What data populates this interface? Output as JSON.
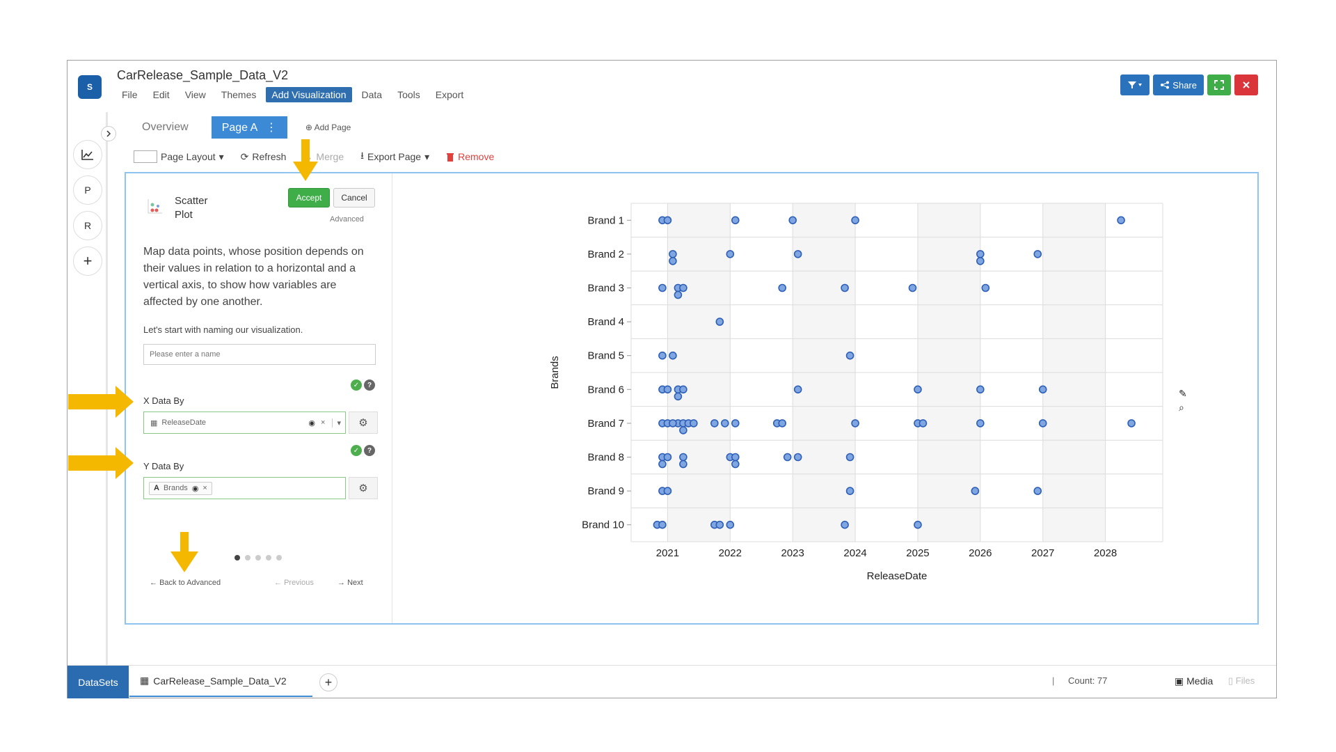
{
  "app": {
    "title": "CarRelease_Sample_Data_V2",
    "logo_text": "S",
    "menu": [
      "File",
      "Edit",
      "View",
      "Themes",
      "Add Visualization",
      "Data",
      "Tools",
      "Export"
    ],
    "active_menu": "Add Visualization",
    "share_label": "Share"
  },
  "rail": {
    "buttons": [
      "P",
      "R",
      "+"
    ]
  },
  "tabs": {
    "overview": "Overview",
    "page_a": "Page A",
    "add_page": "Add Page"
  },
  "toolbar": {
    "page_layout": "Page Layout",
    "refresh": "Refresh",
    "merge": "Merge",
    "export_page": "Export Page",
    "remove": "Remove"
  },
  "config": {
    "viz_name_line1": "Scatter",
    "viz_name_line2": "Plot",
    "accept": "Accept",
    "cancel": "Cancel",
    "advanced": "Advanced",
    "description": "Map data points, whose position depends on their values in relation to a horizontal and a vertical axis, to show how variables are affected by one another.",
    "naming_prompt": "Let's start with naming our visualization.",
    "name_placeholder": "Please enter a name",
    "x_label": "X Data By",
    "x_field": "ReleaseDate",
    "y_label": "Y Data By",
    "y_field": "Brands",
    "back": "Back to Advanced",
    "previous": "Previous",
    "next": "Next"
  },
  "bottom": {
    "datasets": "DataSets",
    "file_tab": "CarRelease_Sample_Data_V2",
    "count": "Count: 77",
    "media": "Media",
    "files": "Files"
  },
  "colors": {
    "accent": "#3c8ad6",
    "point_fill": "#7fa6e0",
    "point_stroke": "#2e5fb8",
    "annotation": "#f5b800"
  },
  "chart_data": {
    "type": "scatter",
    "xlabel": "ReleaseDate",
    "ylabel": "Brands",
    "x_ticks": [
      "2021",
      "2022",
      "2023",
      "2024",
      "2025",
      "2026",
      "2027",
      "2028"
    ],
    "xlim": [
      "2020-06",
      "2028-12"
    ],
    "categories": [
      "Brand 1",
      "Brand 2",
      "Brand 3",
      "Brand 4",
      "Brand 5",
      "Brand 6",
      "Brand 7",
      "Brand 8",
      "Brand 9",
      "Brand 10"
    ],
    "grid": true,
    "points": [
      {
        "brand": "Brand 1",
        "x": [
          "2020-12",
          "2021-01",
          "2022-02",
          "2023-01",
          "2024-01",
          "2028-04"
        ]
      },
      {
        "brand": "Brand 2",
        "x": [
          "2021-02",
          "2021-02",
          "2022-01",
          "2023-02",
          "2026-01",
          "2026-01",
          "2026-12"
        ]
      },
      {
        "brand": "Brand 3",
        "x": [
          "2020-12",
          "2021-03",
          "2021-04",
          "2021-03",
          "2022-11",
          "2023-11",
          "2024-12",
          "2026-02"
        ]
      },
      {
        "brand": "Brand 4",
        "x": [
          "2021-11"
        ]
      },
      {
        "brand": "Brand 5",
        "x": [
          "2020-12",
          "2021-02",
          "2023-12"
        ]
      },
      {
        "brand": "Brand 6",
        "x": [
          "2020-12",
          "2021-01",
          "2021-03",
          "2021-04",
          "2021-03",
          "2023-02",
          "2025-01",
          "2026-01",
          "2027-01"
        ]
      },
      {
        "brand": "Brand 7",
        "x": [
          "2020-12",
          "2021-01",
          "2021-03",
          "2021-04",
          "2021-05",
          "2021-02",
          "2021-04",
          "2021-06",
          "2021-10",
          "2021-12",
          "2022-02",
          "2022-10",
          "2022-11",
          "2024-01",
          "2025-01",
          "2025-02",
          "2026-01",
          "2027-01",
          "2028-06"
        ]
      },
      {
        "brand": "Brand 8",
        "x": [
          "2020-12",
          "2021-01",
          "2021-04",
          "2020-12",
          "2021-04",
          "2022-01",
          "2022-02",
          "2022-02",
          "2022-12",
          "2023-02",
          "2023-12"
        ]
      },
      {
        "brand": "Brand 9",
        "x": [
          "2020-12",
          "2021-01",
          "2023-12",
          "2025-12",
          "2026-12"
        ]
      },
      {
        "brand": "Brand 10",
        "x": [
          "2020-11",
          "2020-12",
          "2021-10",
          "2021-11",
          "2022-01",
          "2023-11",
          "2025-01"
        ]
      }
    ]
  }
}
